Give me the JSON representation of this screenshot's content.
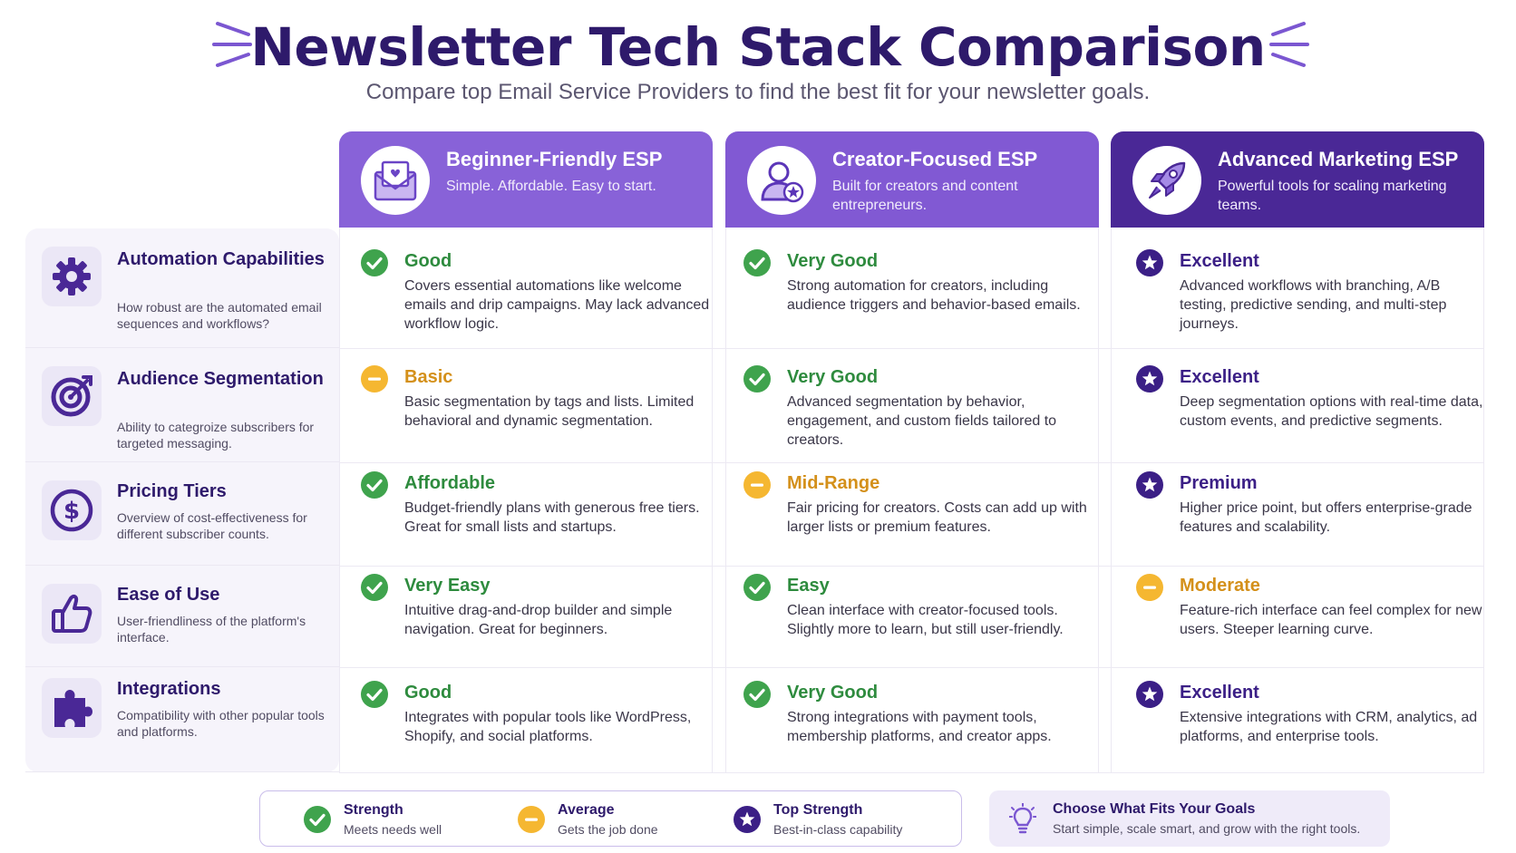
{
  "header": {
    "title": "Newsletter Tech Stack Comparison",
    "subtitle": "Compare top Email Service Providers to find the best fit for your newsletter goals."
  },
  "columns": [
    {
      "title": "Beginner-Friendly ESP",
      "subtitle": "Simple. Affordable. Easy to start.",
      "icon": "envelope-icon",
      "color": "#8862d8"
    },
    {
      "title": "Creator-Focused ESP",
      "subtitle": "Built for creators and content entrepreneurs.",
      "icon": "creator-user-icon",
      "color": "#8159d3"
    },
    {
      "title": "Advanced Marketing ESP",
      "subtitle": "Powerful tools for scaling marketing teams.",
      "icon": "rocket-icon",
      "color": "#4a2896"
    }
  ],
  "criteria": [
    {
      "title": "Automation Capabilities",
      "description": "How robust are the automated email sequences and workflows?",
      "icon": "gear-icon",
      "cells": [
        {
          "rating": "Good",
          "status": "strength",
          "description": "Covers essential automations like welcome emails and drip campaigns. May lack advanced workflow logic."
        },
        {
          "rating": "Very Good",
          "status": "strength",
          "description": "Strong automation for creators, including audience triggers and behavior-based emails."
        },
        {
          "rating": "Excellent",
          "status": "top",
          "description": "Advanced workflows with branching, A/B testing, predictive sending, and multi-step journeys."
        }
      ]
    },
    {
      "title": "Audience Segmentation",
      "description": "Ability to categroize subscribers for targeted messaging.",
      "icon": "target-icon",
      "cells": [
        {
          "rating": "Basic",
          "status": "average",
          "description": "Basic segmentation by tags and lists. Limited behavioral and dynamic segmentation."
        },
        {
          "rating": "Very Good",
          "status": "strength",
          "description": "Advanced segmentation by behavior, engagement, and custom fields tailored to creators."
        },
        {
          "rating": "Excellent",
          "status": "top",
          "description": "Deep segmentation options with real-time data, custom events, and predictive segments."
        }
      ]
    },
    {
      "title": "Pricing Tiers",
      "description": "Overview of cost-effectiveness for different subscriber counts.",
      "icon": "dollar-icon",
      "cells": [
        {
          "rating": "Affordable",
          "status": "strength",
          "description": "Budget-friendly plans with generous free tiers. Great for small lists and startups."
        },
        {
          "rating": "Mid-Range",
          "status": "average",
          "description": "Fair pricing for creators. Costs can add up with larger lists or premium features."
        },
        {
          "rating": "Premium",
          "status": "top",
          "description": "Higher price point, but offers enterprise-grade features and scalability."
        }
      ]
    },
    {
      "title": "Ease of Use",
      "description": "User-friendliness of the platform's interface.",
      "icon": "thumbs-up-icon",
      "cells": [
        {
          "rating": "Very Easy",
          "status": "strength",
          "description": "Intuitive drag-and-drop builder and simple navigation. Great for beginners."
        },
        {
          "rating": "Easy",
          "status": "strength",
          "description": "Clean interface with creator-focused tools. Slightly more to learn, but still user-friendly."
        },
        {
          "rating": "Moderate",
          "status": "average",
          "description": "Feature-rich interface can feel complex for new users. Steeper learning curve."
        }
      ]
    },
    {
      "title": "Integrations",
      "description": "Compatibility with other popular tools and platforms.",
      "icon": "puzzle-icon",
      "cells": [
        {
          "rating": "Good",
          "status": "strength",
          "description": "Integrates with popular tools like WordPress, Shopify, and social platforms."
        },
        {
          "rating": "Very Good",
          "status": "strength",
          "description": "Strong integrations with payment tools, membership platforms, and creator apps."
        },
        {
          "rating": "Excellent",
          "status": "top",
          "description": "Extensive integrations with CRM, analytics, ad platforms, and enterprise tools."
        }
      ]
    }
  ],
  "legend": [
    {
      "title": "Strength",
      "subtitle": "Meets needs well",
      "status": "strength"
    },
    {
      "title": "Average",
      "subtitle": "Gets the job done",
      "status": "average"
    },
    {
      "title": "Top Strength",
      "subtitle": "Best-in-class capability",
      "status": "top"
    }
  ],
  "tip": {
    "title": "Choose What Fits Your Goals",
    "subtitle": "Start simple, scale smart, and grow with the right tools.",
    "icon": "lightbulb-icon"
  },
  "colors": {
    "strength": "#3fa34d",
    "average": "#f5b731",
    "top": "#3b1f86",
    "title": "#2e1a6b"
  }
}
